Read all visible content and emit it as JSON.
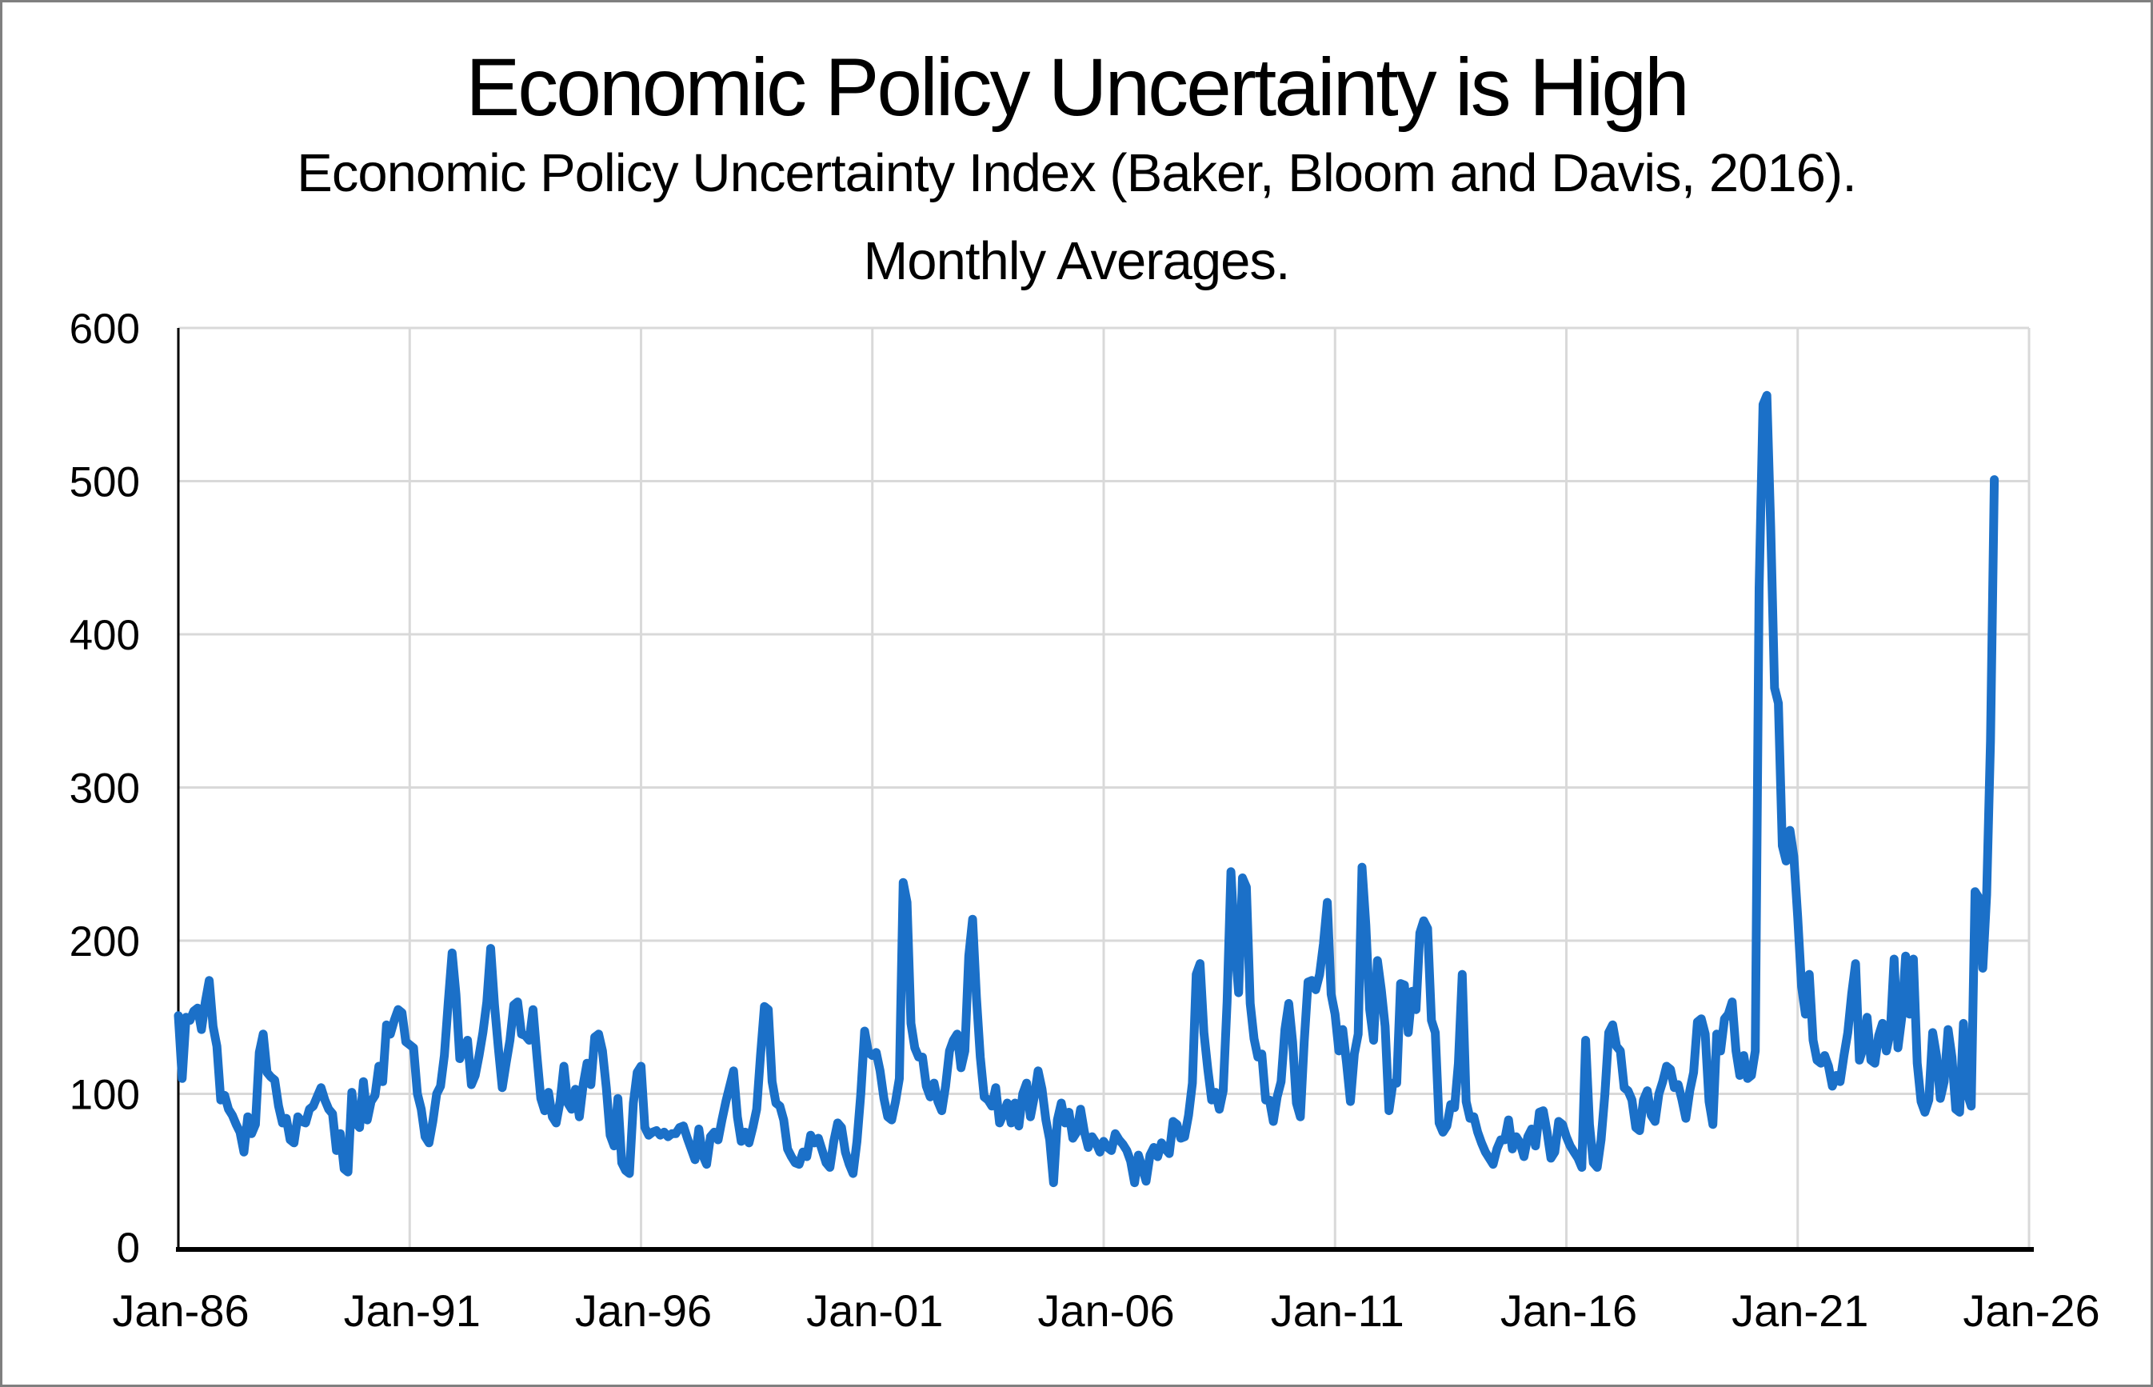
{
  "page": {
    "title": "Economic Policy Uncertainty is High",
    "subtitle_line1": "Economic Policy Uncertainty Index (Baker, Bloom and Davis, 2016).",
    "subtitle_line2": "Monthly Averages."
  },
  "colors": {
    "line": "#1b70c8",
    "gridline": "#d9d9d9",
    "axis": "#000000",
    "text": "#000000",
    "frame_border": "#7f7f7f",
    "background": "#ffffff"
  },
  "chart_data": {
    "type": "line",
    "title": "Economic Policy Uncertainty is High",
    "subtitle": "Economic Policy Uncertainty Index (Baker, Bloom and Davis, 2016). Monthly Averages.",
    "series_name": "Economic Policy Uncertainty Index (monthly average)",
    "frequency": "monthly",
    "x_start_label": "Jan-1986",
    "x_end_label": "Apr-2025",
    "x_tick_labels": [
      "Jan-86",
      "Jan-91",
      "Jan-96",
      "Jan-01",
      "Jan-06",
      "Jan-11",
      "Jan-16",
      "Jan-21",
      "Jan-26"
    ],
    "x_tick_interval_months": 60,
    "xlim_months": [
      0,
      480
    ],
    "y_ticks": [
      0,
      100,
      200,
      300,
      400,
      500,
      600
    ],
    "ylim": [
      0,
      600
    ],
    "ylabel": "",
    "xlabel": "",
    "grid": true,
    "legend_position": "none",
    "values": [
      151,
      110,
      150,
      148,
      154,
      156,
      142,
      160,
      174,
      144,
      131,
      96,
      99,
      90,
      86,
      80,
      75,
      62,
      85,
      74,
      80,
      127,
      139,
      114,
      111,
      109,
      92,
      81,
      84,
      70,
      68,
      85,
      82,
      81,
      90,
      92,
      98,
      104,
      96,
      90,
      87,
      63,
      74,
      51,
      49,
      101,
      81,
      78,
      108,
      83,
      95,
      99,
      118,
      108,
      145,
      139,
      148,
      155,
      153,
      134,
      132,
      130,
      100,
      90,
      72,
      68,
      82,
      100,
      105,
      125,
      160,
      192,
      165,
      123,
      130,
      135,
      106,
      112,
      125,
      140,
      160,
      195,
      158,
      130,
      104,
      120,
      135,
      158,
      160,
      139,
      138,
      135,
      155,
      125,
      97,
      89,
      101,
      85,
      81,
      95,
      118,
      94,
      90,
      103,
      85,
      106,
      120,
      106,
      137,
      139,
      128,
      104,
      73,
      66,
      97,
      55,
      50,
      48,
      94,
      114,
      118,
      78,
      73,
      75,
      76,
      73,
      75,
      72,
      74,
      74,
      78,
      79,
      71,
      64,
      57,
      77,
      60,
      54,
      72,
      75,
      70,
      83,
      95,
      105,
      115,
      85,
      69,
      75,
      68,
      78,
      90,
      125,
      157,
      155,
      108,
      94,
      92,
      83,
      64,
      59,
      55,
      54,
      62,
      59,
      73,
      68,
      71,
      63,
      55,
      52,
      69,
      81,
      78,
      62,
      54,
      48,
      69,
      100,
      141,
      127,
      125,
      127,
      115,
      97,
      85,
      83,
      95,
      110,
      238,
      225,
      146,
      130,
      124,
      124,
      105,
      98,
      107,
      95,
      89,
      105,
      128,
      135,
      139,
      117,
      128,
      190,
      214,
      163,
      124,
      98,
      96,
      92,
      104,
      81,
      87,
      94,
      81,
      94,
      79,
      100,
      107,
      85,
      98,
      115,
      103,
      83,
      70,
      42,
      83,
      94,
      81,
      88,
      71,
      75,
      90,
      75,
      65,
      72,
      68,
      62,
      69,
      65,
      63,
      74,
      70,
      67,
      63,
      56,
      42,
      60,
      52,
      43,
      60,
      65,
      59,
      68,
      64,
      61,
      82,
      80,
      71,
      72,
      86,
      107,
      178,
      185,
      140,
      116,
      96,
      101,
      90,
      102,
      160,
      245,
      198,
      166,
      241,
      235,
      159,
      136,
      124,
      126,
      96,
      96,
      82,
      98,
      108,
      142,
      159,
      134,
      94,
      85,
      134,
      173,
      174,
      168,
      178,
      198,
      225,
      165,
      152,
      128,
      142,
      120,
      95,
      126,
      139,
      248,
      210,
      155,
      135,
      187,
      168,
      144,
      89,
      107,
      107,
      172,
      171,
      140,
      167,
      155,
      205,
      213,
      208,
      148,
      140,
      81,
      75,
      79,
      93,
      91,
      120,
      178,
      95,
      84,
      85,
      75,
      68,
      62,
      58,
      54,
      64,
      70,
      70,
      83,
      64,
      72,
      68,
      59,
      72,
      77,
      66,
      88,
      89,
      75,
      58,
      62,
      82,
      80,
      72,
      66,
      62,
      58,
      52,
      135,
      80,
      55,
      52,
      70,
      100,
      140,
      145,
      131,
      128,
      104,
      102,
      96,
      78,
      76,
      96,
      102,
      86,
      82,
      100,
      108,
      118,
      116,
      104,
      106,
      96,
      84,
      102,
      114,
      147,
      149,
      139,
      95,
      80,
      139,
      128,
      149,
      152,
      160,
      128,
      112,
      125,
      110,
      112,
      128,
      430,
      550,
      556,
      470,
      365,
      355,
      262,
      252,
      272,
      255,
      215,
      170,
      152,
      178,
      135,
      122,
      120,
      125,
      118,
      105,
      112,
      108,
      125,
      140,
      165,
      185,
      122,
      130,
      150,
      122,
      120,
      138,
      146,
      128,
      140,
      188,
      130,
      150,
      190,
      152,
      188,
      120,
      95,
      88,
      96,
      140,
      125,
      97,
      108,
      142,
      124,
      90,
      88,
      146,
      100,
      92,
      232,
      228,
      182,
      230,
      330,
      501
    ]
  }
}
